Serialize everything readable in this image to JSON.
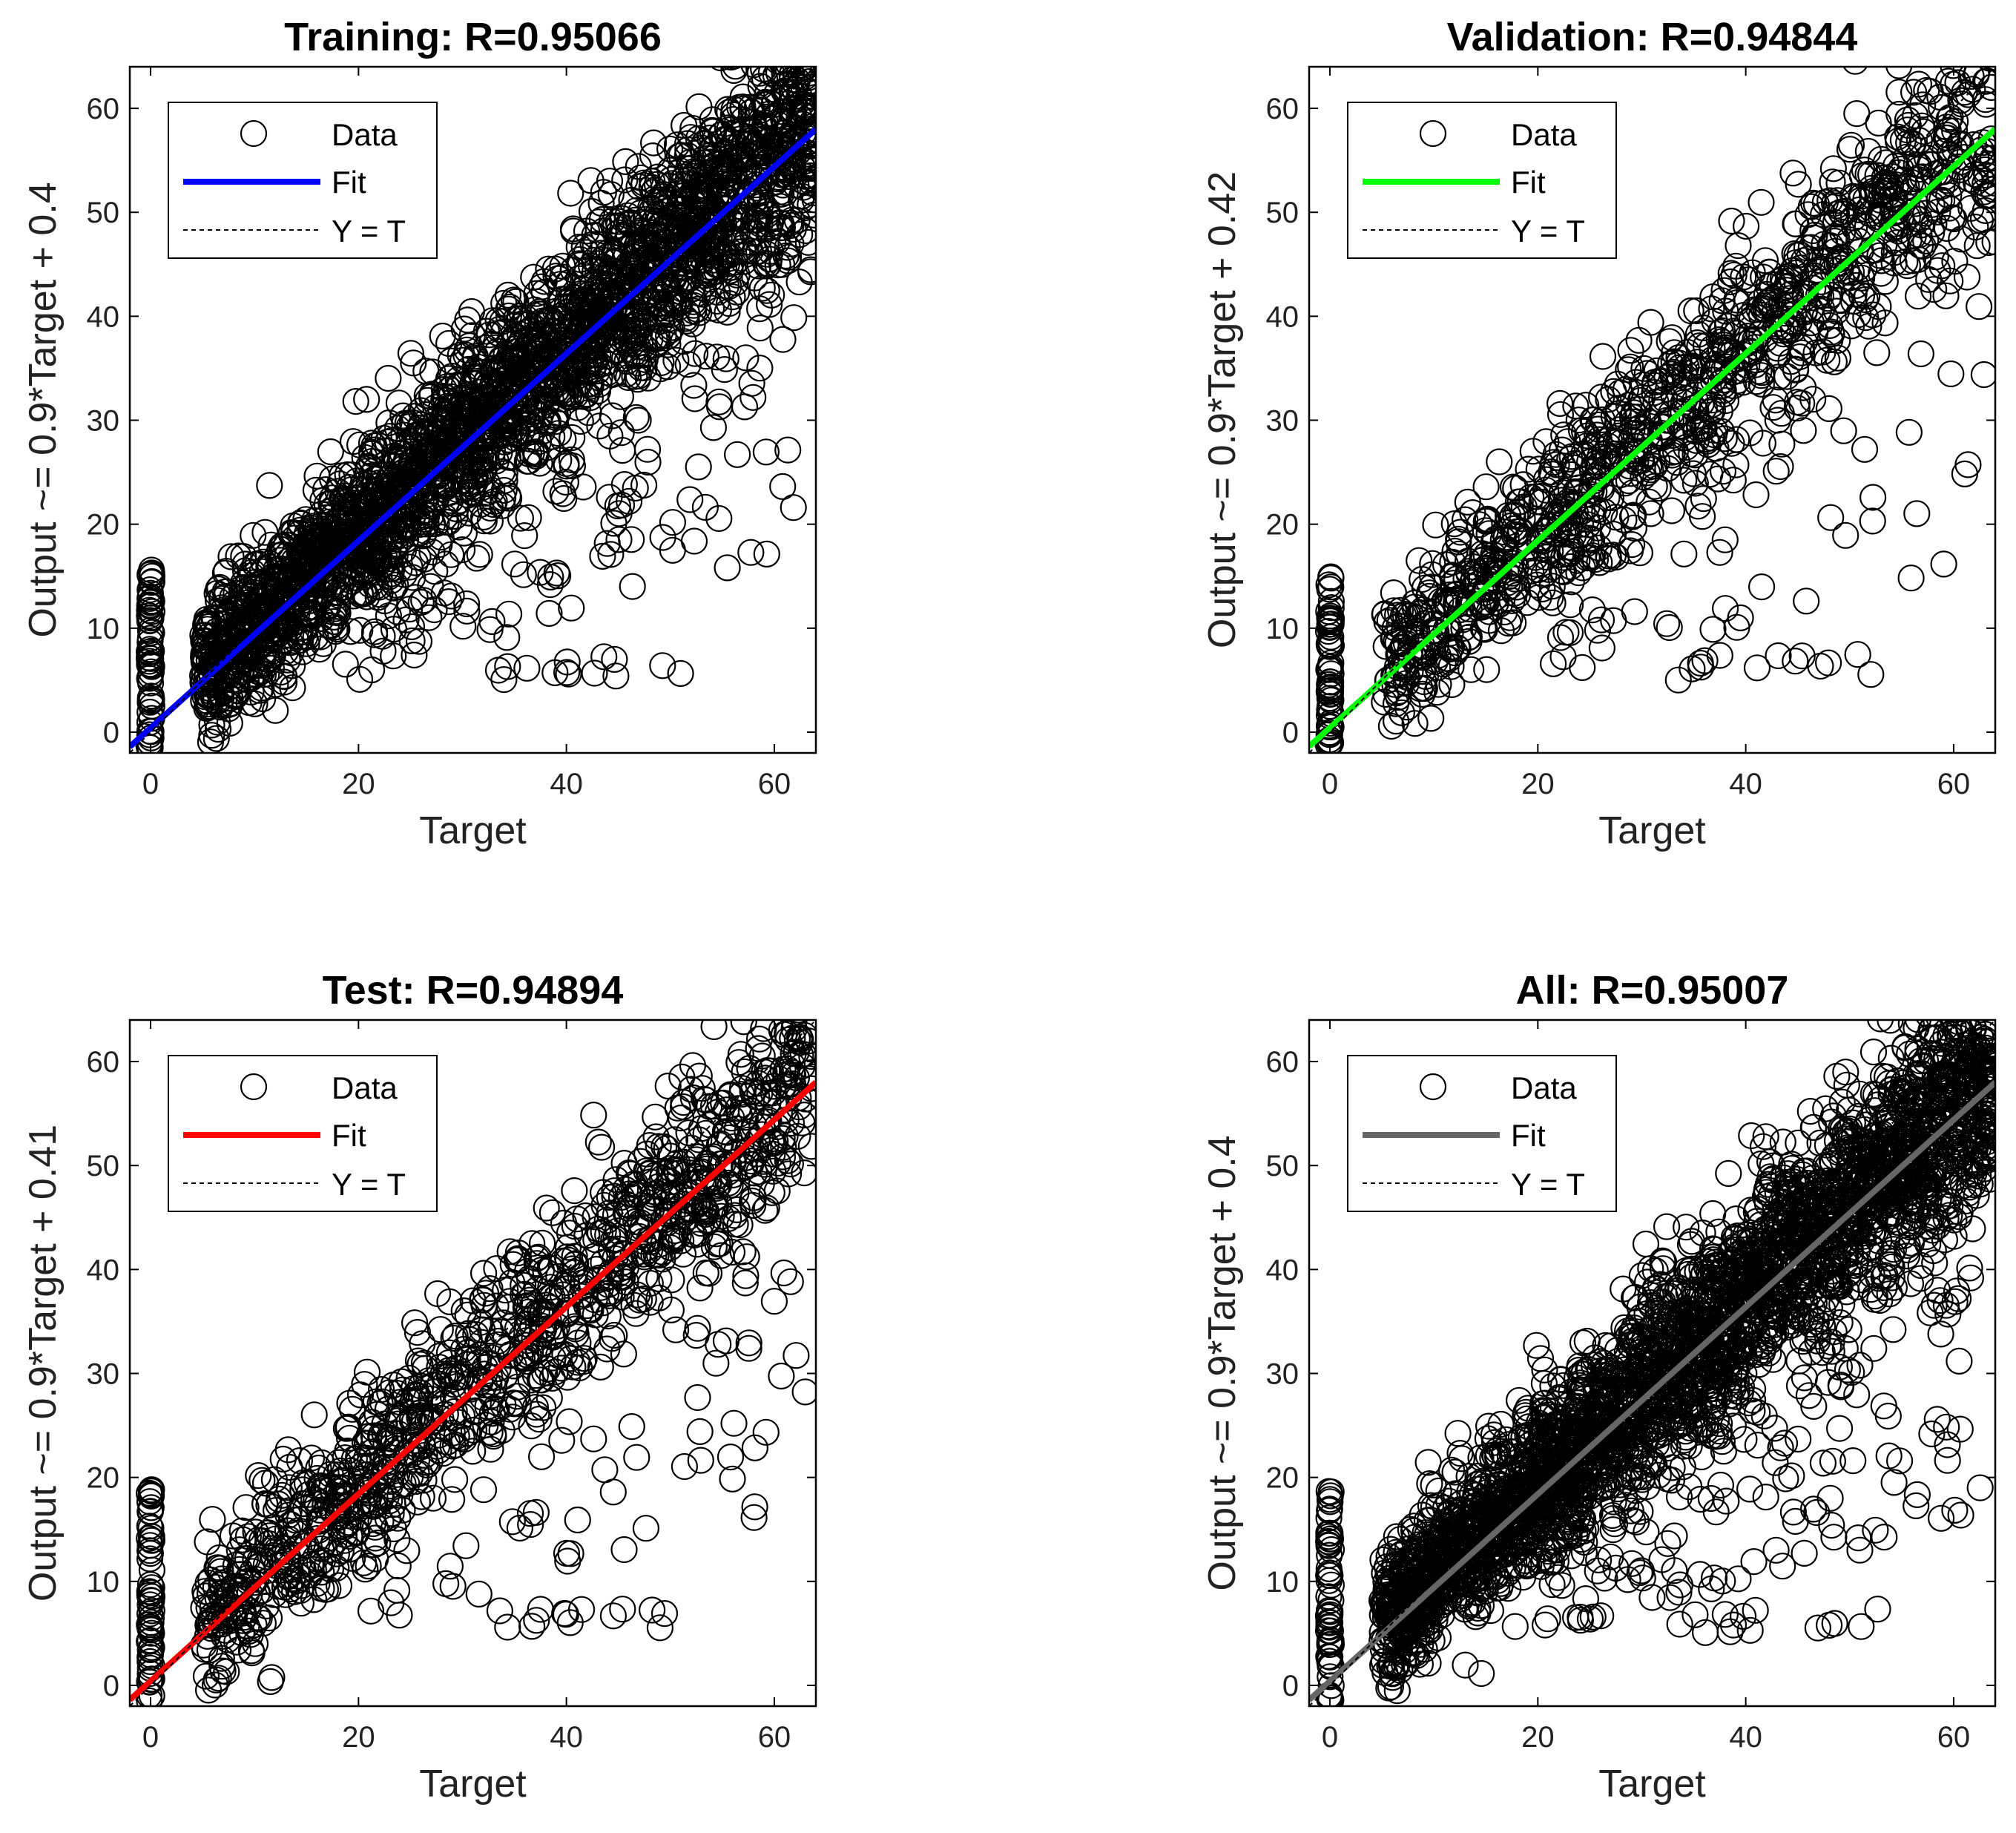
{
  "chart_data": [
    {
      "type": "scatter",
      "title": "Training: R=0.95066",
      "xlabel": "Target",
      "ylabel": "Output ~= 0.9*Target + 0.4",
      "xlim": [
        -2,
        64
      ],
      "ylim": [
        -2,
        64
      ],
      "xticks": [
        0,
        20,
        40,
        60
      ],
      "yticks": [
        0,
        10,
        20,
        30,
        40,
        50,
        60
      ],
      "fit": {
        "slope": 0.9,
        "intercept": 0.4,
        "color": "#0000ff"
      },
      "legend": {
        "placement": "top-left",
        "entries": [
          "Data",
          "Fit",
          "Y = T"
        ]
      },
      "series": [
        {
          "name": "Data",
          "marker": "circle",
          "description": "dense cloud along Y=T; vertical stack at Target=0 spanning Output 0 to 16; outliers below diagonal near Output 6 for Target 35-53"
        }
      ]
    },
    {
      "type": "scatter",
      "title": "Validation: R=0.94844",
      "xlabel": "Target",
      "ylabel": "Output ~= 0.9*Target + 0.42",
      "xlim": [
        -2,
        64
      ],
      "ylim": [
        -2,
        64
      ],
      "xticks": [
        0,
        20,
        40,
        60
      ],
      "yticks": [
        0,
        10,
        20,
        30,
        40,
        50,
        60
      ],
      "fit": {
        "slope": 0.9,
        "intercept": 0.42,
        "color": "#00ff00"
      },
      "legend": {
        "placement": "top-left",
        "entries": [
          "Data",
          "Fit",
          "Y = T"
        ]
      },
      "series": [
        {
          "name": "Data",
          "marker": "circle",
          "description": "cloud along Y=T; vertical stack at Target=0 spanning Output 0 to 15"
        }
      ]
    },
    {
      "type": "scatter",
      "title": "Test: R=0.94894",
      "xlabel": "Target",
      "ylabel": "Output ~= 0.9*Target + 0.41",
      "xlim": [
        -2,
        64
      ],
      "ylim": [
        -2,
        64
      ],
      "xticks": [
        0,
        20,
        40,
        60
      ],
      "yticks": [
        0,
        10,
        20,
        30,
        40,
        50,
        60
      ],
      "fit": {
        "slope": 0.9,
        "intercept": 0.41,
        "color": "#ff0000"
      },
      "legend": {
        "placement": "top-left",
        "entries": [
          "Data",
          "Fit",
          "Y = T"
        ]
      },
      "series": [
        {
          "name": "Data",
          "marker": "circle",
          "description": "cloud along Y=T; vertical stack at Target=0 spanning Output 0 to 19"
        }
      ]
    },
    {
      "type": "scatter",
      "title": "All: R=0.95007",
      "xlabel": "Target",
      "ylabel": "Output ~= 0.9*Target + 0.4",
      "xlim": [
        -2,
        64
      ],
      "ylim": [
        -2,
        64
      ],
      "xticks": [
        0,
        20,
        40,
        60
      ],
      "yticks": [
        0,
        10,
        20,
        30,
        40,
        50,
        60
      ],
      "fit": {
        "slope": 0.9,
        "intercept": 0.4,
        "color": "#666666"
      },
      "legend": {
        "placement": "top-left",
        "entries": [
          "Data",
          "Fit",
          "Y = T"
        ]
      },
      "series": [
        {
          "name": "Data",
          "marker": "circle",
          "description": "dense cloud along Y=T; vertical stack at Target=0 spanning Output 0 to 19; outliers near Output 6 for Target 30-53"
        }
      ]
    }
  ]
}
